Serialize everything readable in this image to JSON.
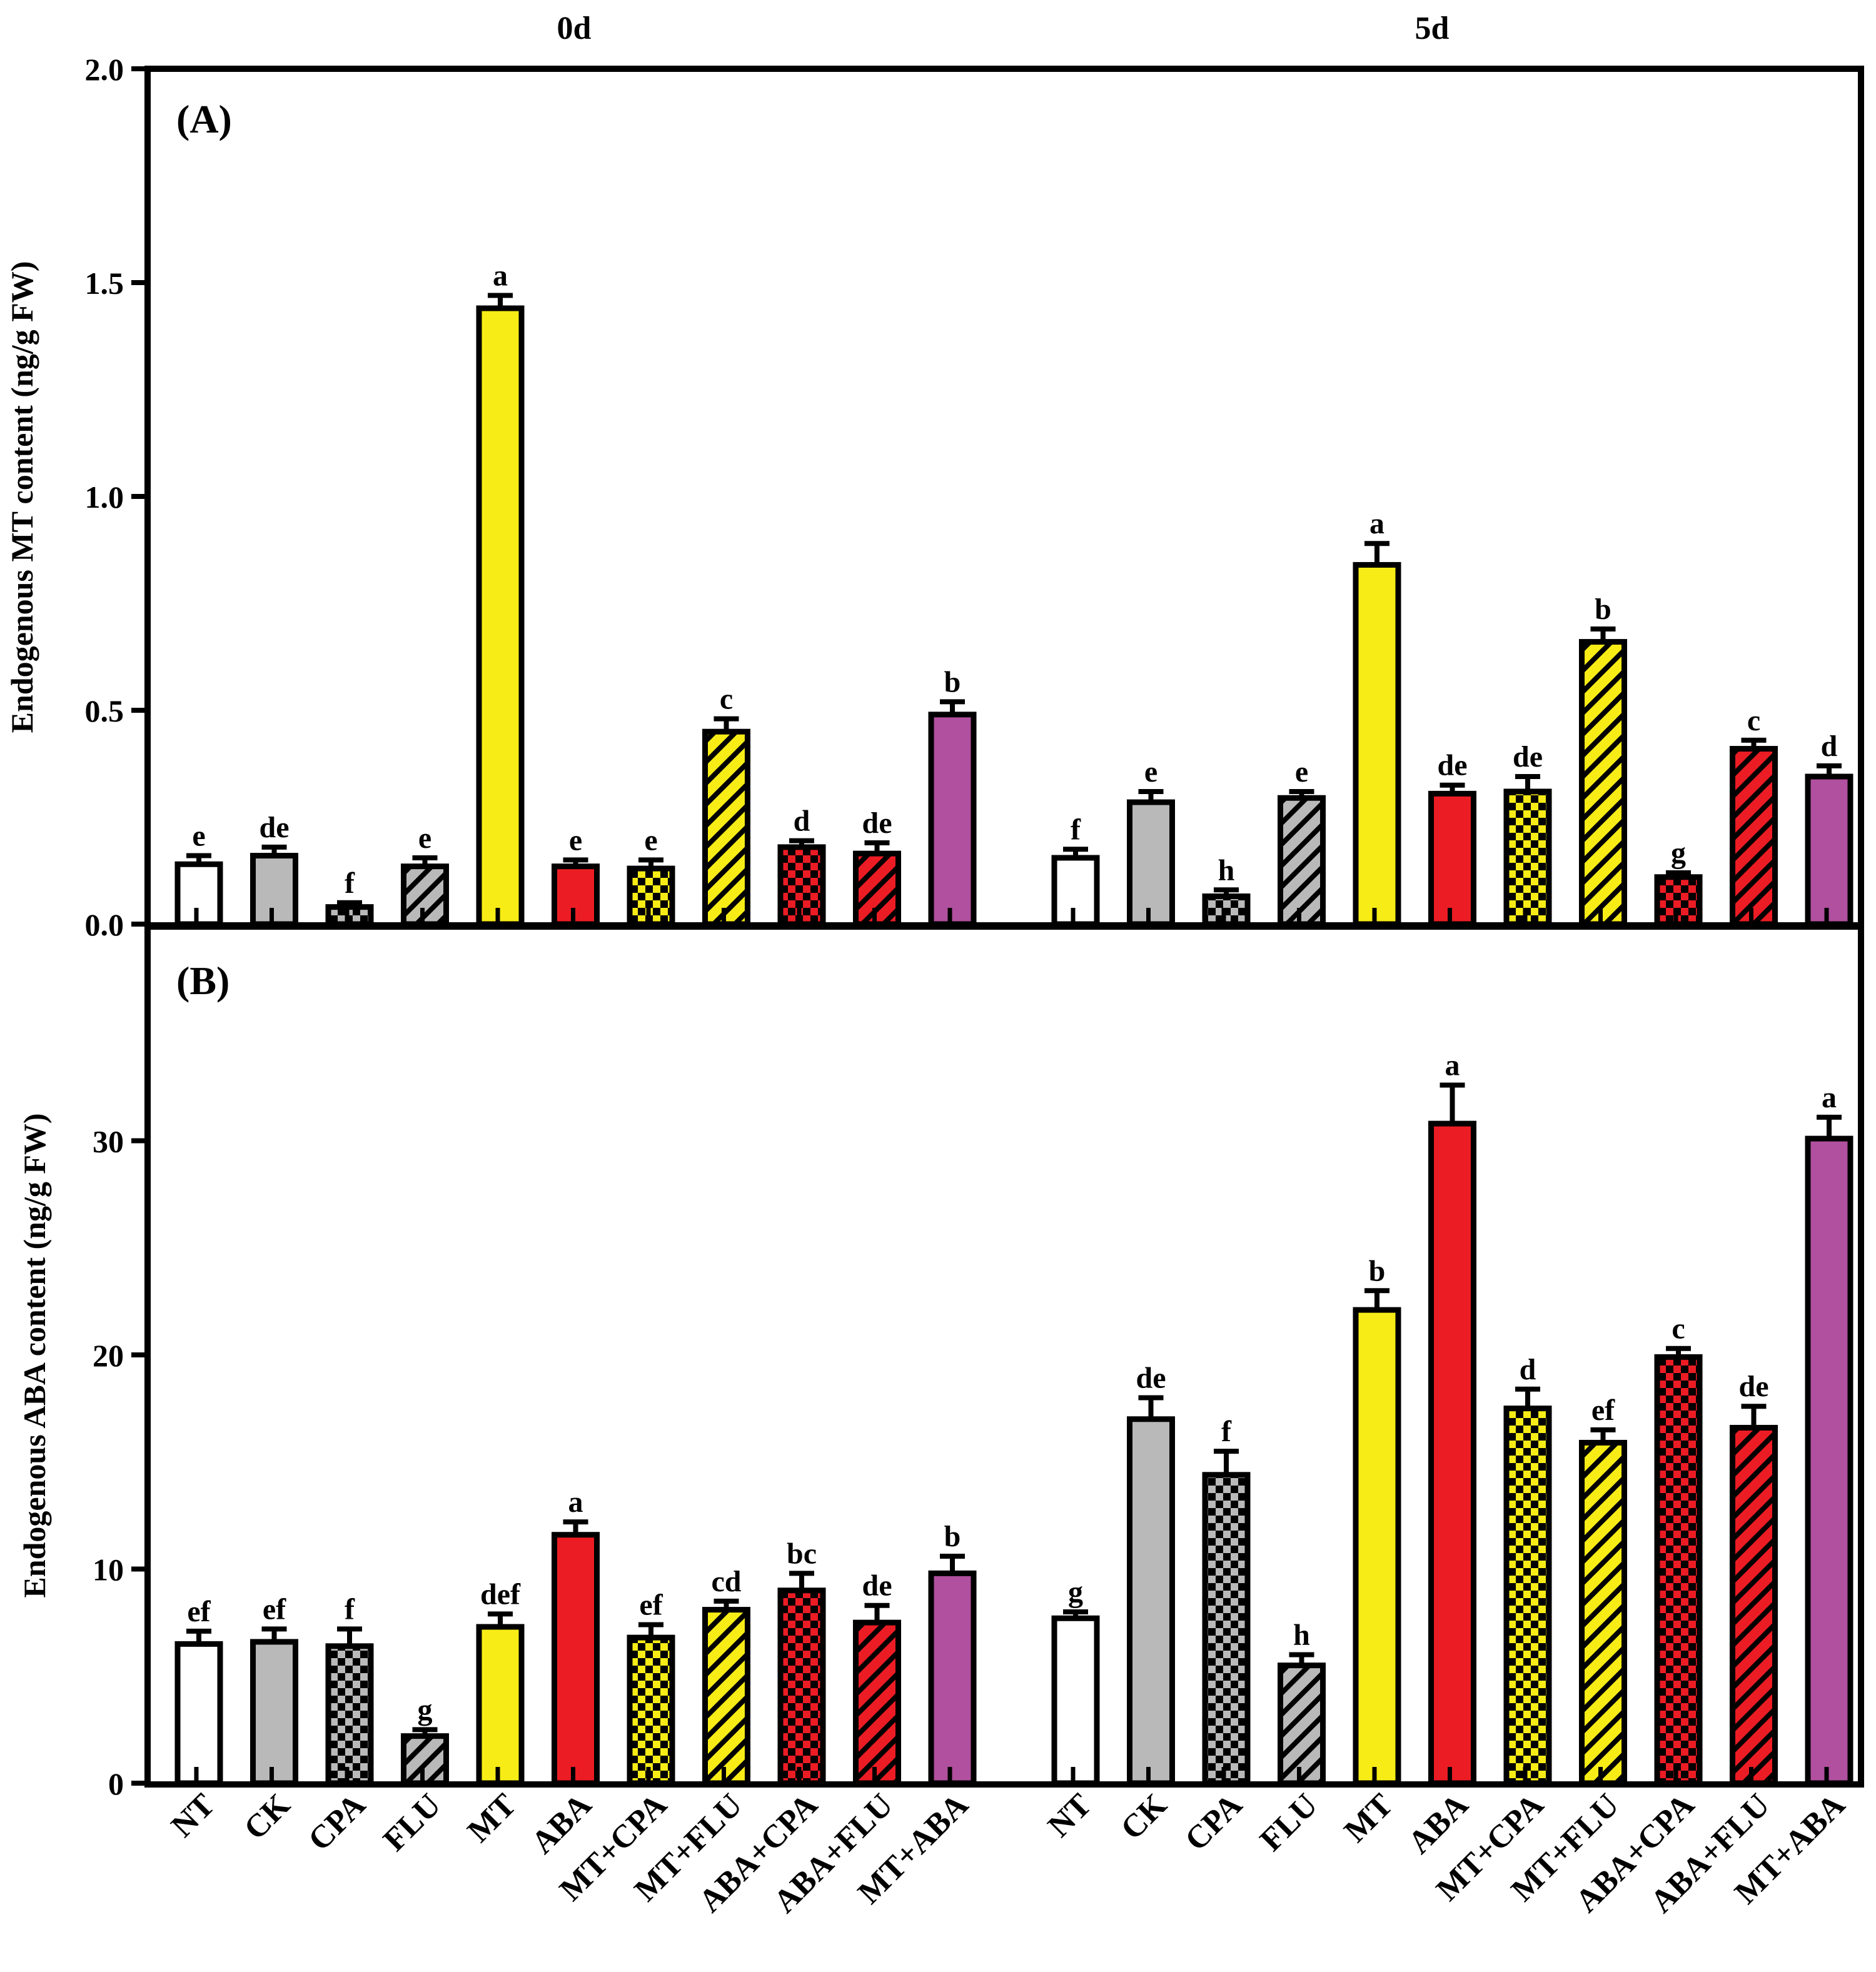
{
  "chart_data": [
    {
      "type": "bar",
      "panel_label": "(A)",
      "ylabel": "Endogenous MT content (ng/g FW)",
      "ylim": [
        0,
        2.0
      ],
      "yticks": [
        "0.0",
        "0.5",
        "1.0",
        "1.5",
        "2.0"
      ],
      "ytick_values": [
        0,
        0.5,
        1.0,
        1.5,
        2.0
      ],
      "group_labels": [
        "0d",
        "5d"
      ],
      "categories": [
        "NT",
        "CK",
        "CPA",
        "FLU",
        "MT",
        "ABA",
        "MT+CPA",
        "MT+FLU",
        "ABA+CPA",
        "ABA+FLU",
        "MT+ABA"
      ],
      "groups": [
        {
          "name": "0d",
          "values": [
            0.14,
            0.16,
            0.04,
            0.135,
            1.44,
            0.135,
            0.13,
            0.45,
            0.18,
            0.165,
            0.49
          ],
          "errors": [
            0.02,
            0.02,
            0.01,
            0.02,
            0.03,
            0.015,
            0.02,
            0.03,
            0.015,
            0.025,
            0.03
          ],
          "letters": [
            "e",
            "de",
            "f",
            "e",
            "a",
            "e",
            "e",
            "c",
            "d",
            "de",
            "b"
          ]
        },
        {
          "name": "5d",
          "values": [
            0.155,
            0.285,
            0.065,
            0.295,
            0.84,
            0.305,
            0.31,
            0.66,
            0.11,
            0.41,
            0.345
          ],
          "errors": [
            0.02,
            0.025,
            0.015,
            0.015,
            0.05,
            0.02,
            0.035,
            0.03,
            0.01,
            0.02,
            0.025
          ],
          "letters": [
            "f",
            "e",
            "h",
            "e",
            "a",
            "de",
            "de",
            "b",
            "g",
            "c",
            "d"
          ]
        }
      ]
    },
    {
      "type": "bar",
      "panel_label": "(B)",
      "ylabel": "Endogenous ABA content (ng/g FW)",
      "ylim": [
        0,
        40
      ],
      "yticks": [
        "0",
        "10",
        "20",
        "30"
      ],
      "ytick_values": [
        0,
        10,
        20,
        30
      ],
      "categories": [
        "NT",
        "CK",
        "CPA",
        "FLU",
        "MT",
        "ABA",
        "MT+CPA",
        "MT+FLU",
        "ABA+CPA",
        "ABA+FLU",
        "MT+ABA"
      ],
      "groups": [
        {
          "name": "0d",
          "values": [
            6.5,
            6.6,
            6.4,
            2.2,
            7.3,
            11.6,
            6.8,
            8.1,
            9.0,
            7.5,
            9.8
          ],
          "errors": [
            0.6,
            0.6,
            0.8,
            0.3,
            0.6,
            0.6,
            0.6,
            0.4,
            0.8,
            0.8,
            0.8
          ],
          "letters": [
            "ef",
            "ef",
            "f",
            "g",
            "def",
            "a",
            "ef",
            "cd",
            "bc",
            "de",
            "b"
          ]
        },
        {
          "name": "5d",
          "values": [
            7.7,
            17.0,
            14.4,
            5.5,
            22.1,
            30.8,
            17.5,
            15.9,
            19.9,
            16.6,
            30.1
          ],
          "errors": [
            0.3,
            1.0,
            1.1,
            0.5,
            0.9,
            1.8,
            0.9,
            0.6,
            0.4,
            1.0,
            1.0
          ],
          "letters": [
            "g",
            "de",
            "f",
            "h",
            "b",
            "a",
            "d",
            "ef",
            "c",
            "de",
            "a"
          ]
        }
      ]
    }
  ],
  "treatments": [
    {
      "name": "NT",
      "color": "#ffffff",
      "pattern": "solid"
    },
    {
      "name": "CK",
      "color": "#b9b9b9",
      "pattern": "solid"
    },
    {
      "name": "CPA",
      "color": "#b9b9b9",
      "pattern": "checker"
    },
    {
      "name": "FLU",
      "color": "#b9b9b9",
      "pattern": "hatch"
    },
    {
      "name": "MT",
      "color": "#f7ec16",
      "pattern": "solid"
    },
    {
      "name": "ABA",
      "color": "#ec1c24",
      "pattern": "solid"
    },
    {
      "name": "MT+CPA",
      "color": "#f7ec16",
      "pattern": "checker"
    },
    {
      "name": "MT+FLU",
      "color": "#f7ec16",
      "pattern": "hatch"
    },
    {
      "name": "ABA+CPA",
      "color": "#ec1c24",
      "pattern": "checker"
    },
    {
      "name": "ABA+FLU",
      "color": "#ec1c24",
      "pattern": "hatch"
    },
    {
      "name": "MT+ABA",
      "color": "#b0509e",
      "pattern": "solid"
    }
  ]
}
